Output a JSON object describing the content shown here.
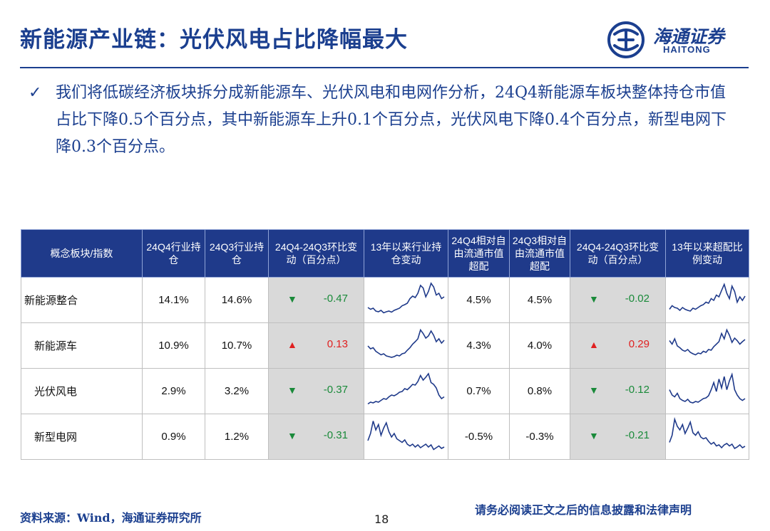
{
  "title": "新能源产业链：光伏风电占比降幅最大",
  "logo": {
    "cn": "海通证券",
    "en": "HAITONG"
  },
  "bullet": {
    "check": "✓",
    "text": "我们将低碳经济板块拆分成新能源车、光伏风电和电网作分析，24Q4新能源车板块整体持仓市值占比下降0.5个百分点，其中新能源车上升0.1个百分点，光伏风电下降0.4个百分点，新型电网下降0.3个百分点。"
  },
  "table": {
    "headers": [
      "概念板块/指数",
      "24Q4行业持仓",
      "24Q3行业持仓",
      "24Q4-24Q3环比变动（百分点）",
      "13年以来行业持仓变动",
      "24Q4相对自由流通市值超配",
      "24Q3相对自由流通市值超配",
      "24Q4-24Q3环比变动（百分点）",
      "13年以来超配比例变动"
    ],
    "rows": [
      {
        "name": "新能源整合",
        "q4": "14.1%",
        "q3": "14.6%",
        "chg_arrow": "▼",
        "chg": "-0.47",
        "ow_q4": "4.5%",
        "ow_q3": "4.5%",
        "ow_arrow": "▼",
        "ow_chg": "-0.02"
      },
      {
        "name": "新能源车",
        "q4": "10.9%",
        "q3": "10.7%",
        "chg_arrow": "▲",
        "chg": "0.13",
        "ow_q4": "4.3%",
        "ow_q3": "4.0%",
        "ow_arrow": "▲",
        "ow_chg": "0.29"
      },
      {
        "name": "光伏风电",
        "q4": "2.9%",
        "q3": "3.2%",
        "chg_arrow": "▼",
        "chg": "-0.37",
        "ow_q4": "0.7%",
        "ow_q3": "0.8%",
        "ow_arrow": "▼",
        "ow_chg": "-0.12"
      },
      {
        "name": "新型电网",
        "q4": "0.9%",
        "q3": "1.2%",
        "chg_arrow": "▼",
        "chg": "-0.31",
        "ow_q4": "-0.5%",
        "ow_q3": "-0.3%",
        "ow_arrow": "▼",
        "ow_chg": "-0.21"
      }
    ]
  },
  "colors": {
    "brand": "#1b3f8f",
    "header_bg": "#1f3a8a",
    "down": "#1a8a3a",
    "up": "#e02020",
    "shade": "#d9d9d9"
  },
  "sparklines": [
    [
      0.3,
      0.25,
      0.28,
      0.2,
      0.18,
      0.22,
      0.15,
      0.18,
      0.2,
      0.17,
      0.22,
      0.25,
      0.28,
      0.35,
      0.38,
      0.42,
      0.55,
      0.62,
      0.58,
      0.7,
      0.92,
      0.85,
      0.6,
      0.75,
      0.98,
      0.88,
      0.65,
      0.7,
      0.55,
      0.6
    ],
    [
      0.5,
      0.42,
      0.45,
      0.35,
      0.3,
      0.25,
      0.28,
      0.22,
      0.2,
      0.18,
      0.2,
      0.24,
      0.22,
      0.28,
      0.3,
      0.38,
      0.45,
      0.55,
      0.62,
      0.7,
      0.95,
      0.85,
      0.72,
      0.78,
      0.92,
      0.8,
      0.62,
      0.7,
      0.58,
      0.66
    ],
    [
      0.15,
      0.2,
      0.18,
      0.22,
      0.2,
      0.25,
      0.3,
      0.28,
      0.35,
      0.4,
      0.38,
      0.42,
      0.48,
      0.5,
      0.58,
      0.55,
      0.62,
      0.7,
      0.68,
      0.78,
      0.95,
      0.82,
      0.9,
      1.0,
      0.75,
      0.7,
      0.6,
      0.4,
      0.3,
      0.35
    ],
    [
      0.4,
      0.6,
      0.95,
      0.7,
      0.85,
      0.55,
      0.75,
      0.9,
      0.65,
      0.5,
      0.6,
      0.45,
      0.4,
      0.35,
      0.42,
      0.3,
      0.25,
      0.3,
      0.22,
      0.28,
      0.2,
      0.25,
      0.3,
      0.22,
      0.28,
      0.15,
      0.2,
      0.25,
      0.18,
      0.22
    ],
    [
      0.25,
      0.35,
      0.3,
      0.28,
      0.22,
      0.3,
      0.25,
      0.22,
      0.2,
      0.28,
      0.25,
      0.3,
      0.35,
      0.38,
      0.45,
      0.42,
      0.55,
      0.5,
      0.65,
      0.6,
      0.78,
      0.95,
      0.7,
      0.55,
      0.9,
      0.75,
      0.45,
      0.6,
      0.5,
      0.62
    ],
    [
      0.65,
      0.55,
      0.7,
      0.5,
      0.45,
      0.38,
      0.35,
      0.4,
      0.32,
      0.28,
      0.25,
      0.3,
      0.28,
      0.35,
      0.32,
      0.4,
      0.38,
      0.48,
      0.55,
      0.62,
      0.85,
      0.7,
      0.95,
      0.8,
      0.6,
      0.72,
      0.65,
      0.55,
      0.62,
      0.68
    ],
    [
      0.55,
      0.4,
      0.35,
      0.45,
      0.3,
      0.25,
      0.22,
      0.28,
      0.2,
      0.18,
      0.22,
      0.2,
      0.25,
      0.3,
      0.32,
      0.38,
      0.55,
      0.75,
      0.5,
      0.85,
      0.6,
      0.92,
      0.55,
      0.8,
      0.98,
      0.55,
      0.4,
      0.3,
      0.25,
      0.3
    ],
    [
      0.35,
      0.55,
      1.0,
      0.8,
      0.7,
      0.85,
      0.6,
      0.75,
      0.92,
      0.62,
      0.55,
      0.65,
      0.5,
      0.45,
      0.48,
      0.38,
      0.3,
      0.35,
      0.25,
      0.28,
      0.2,
      0.28,
      0.32,
      0.25,
      0.3,
      0.18,
      0.22,
      0.28,
      0.2,
      0.24
    ]
  ],
  "source": "资料来源：Wind，海通证券研究所",
  "page_number": "18",
  "disclaimer": "请务必阅读正文之后的信息披露和法律声明"
}
